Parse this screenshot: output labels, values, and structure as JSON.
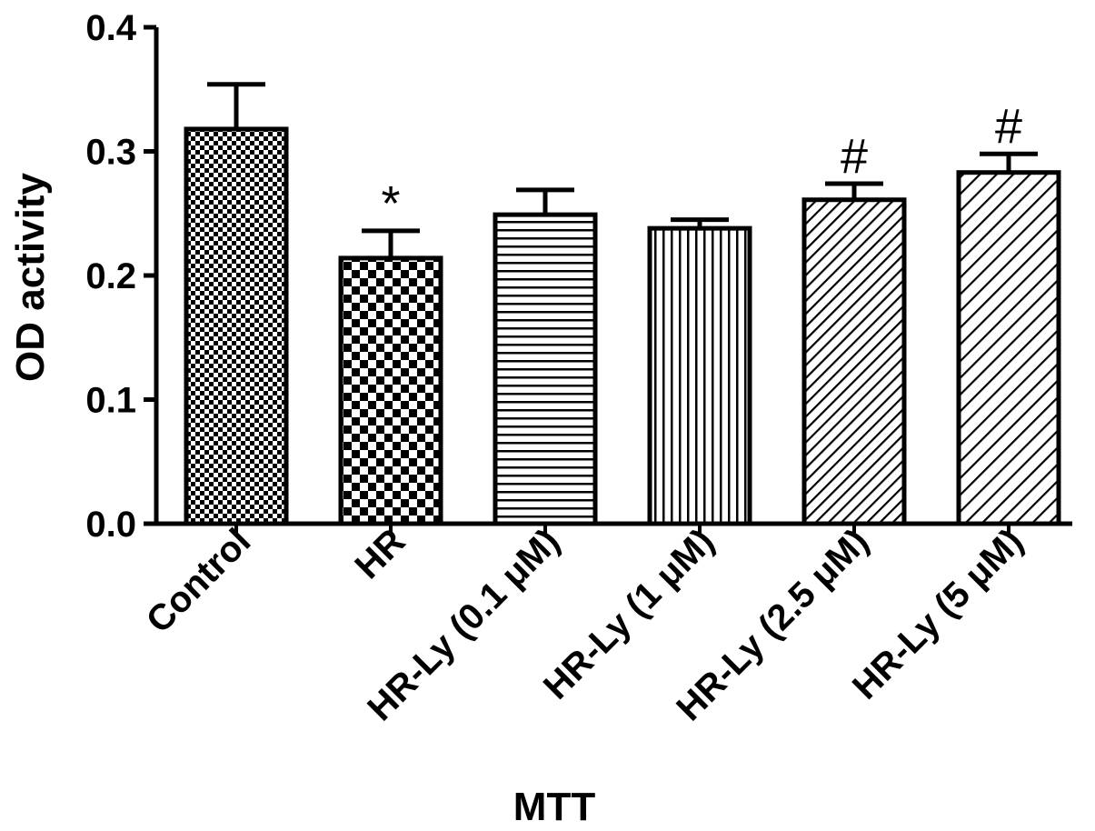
{
  "chart_data": {
    "type": "bar",
    "title": "",
    "xlabel": "MTT",
    "ylabel": "OD activity",
    "ylim": [
      0,
      0.4
    ],
    "yticks": [
      "0.0",
      "0.1",
      "0.2",
      "0.3",
      "0.4"
    ],
    "yticks_values": [
      0,
      0.1,
      0.2,
      0.3,
      0.4
    ],
    "grid": false,
    "legend": "none",
    "categories": [
      "Control",
      "HR",
      "HR-Ly (0.1 μM)",
      "HR-Ly (1 μM)",
      "HR-Ly (2.5 μM)",
      "HR-Ly (5 μM)"
    ],
    "values": [
      0.318,
      0.214,
      0.249,
      0.238,
      0.261,
      0.283
    ],
    "errors": [
      0.036,
      0.022,
      0.02,
      0.007,
      0.013,
      0.015
    ],
    "annotations": [
      "",
      "*",
      "",
      "",
      "#",
      "#"
    ],
    "patterns": [
      "fine-checker",
      "checker",
      "horizontal-lines",
      "vertical-lines",
      "diagonal-dense",
      "diagonal-sparse"
    ],
    "colors": {
      "bar_stroke": "#000000",
      "pattern": "#000000",
      "background": "#ffffff"
    }
  }
}
